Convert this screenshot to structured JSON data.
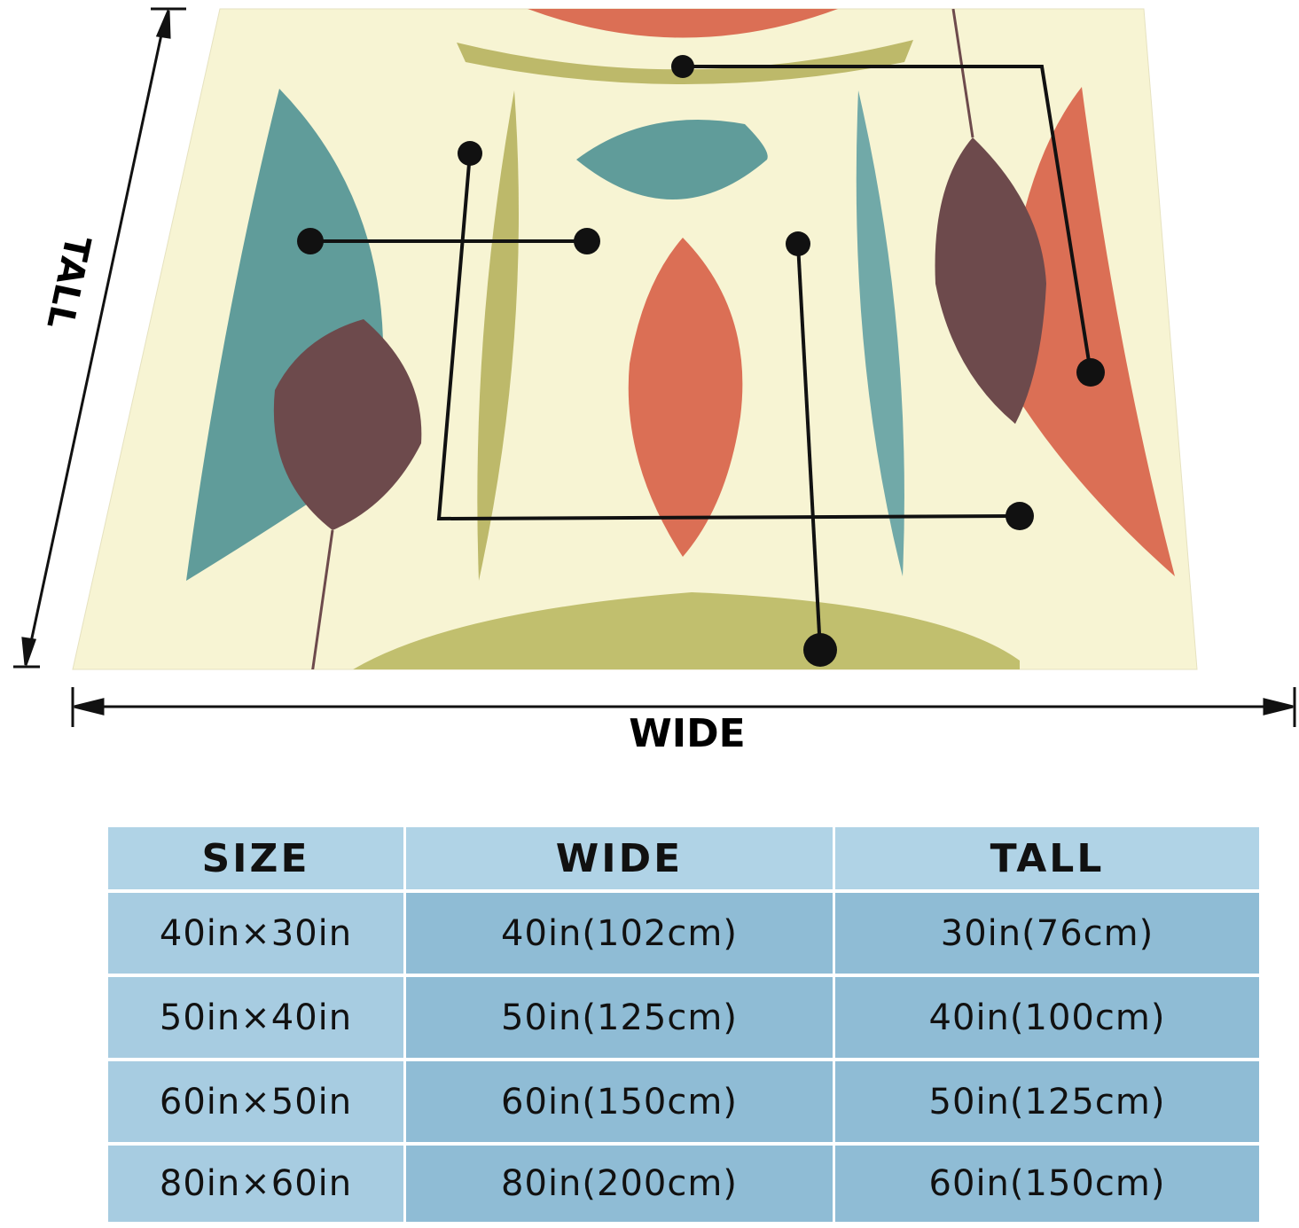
{
  "dimensions": {
    "tall_label": "TALL",
    "wide_label": "WIDE"
  },
  "table": {
    "header": [
      "SIZE",
      "WIDE",
      "TALL"
    ],
    "rows": [
      [
        "40in×30in",
        "40in(102cm)",
        "30in(76cm)"
      ],
      [
        "50in×40in",
        "50in(125cm)",
        "40in(100cm)"
      ],
      [
        "60in×50in",
        "60in(150cm)",
        "50in(125cm)"
      ],
      [
        "80in×60in",
        "80in(200cm)",
        "60in(150cm)"
      ]
    ]
  }
}
